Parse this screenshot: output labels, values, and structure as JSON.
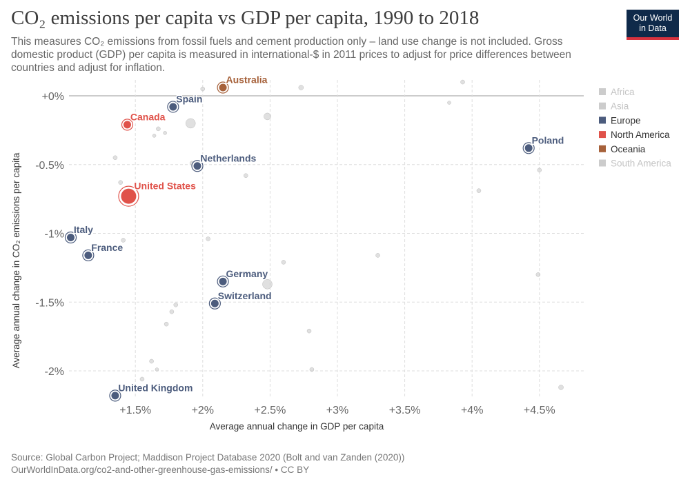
{
  "title": "CO₂ emissions per capita vs GDP per capita, 1990 to 2018",
  "subtitle": "This measures CO₂ emissions from fossil fuels and cement production only – land use change is not included. Gross domestic product (GDP) per capita is measured in international-$ in 2011 prices to adjust for price differences between countries and adjust for inflation.",
  "logo": {
    "line1": "Our World",
    "line2": "in Data"
  },
  "footer": {
    "source": "Source: Global Carbon Project; Maddison Project Database 2020 (Bolt and van Zanden (2020))",
    "url": "OurWorldInData.org/co2-and-other-greenhouse-gas-emissions/ • CC BY"
  },
  "colors": {
    "Europe": "#4c5c7d",
    "North America": "#e0524a",
    "Oceania": "#a6613a",
    "faded": "#cccccc",
    "zero_line": "#999999",
    "grid": "#dddddd"
  },
  "chart_data": {
    "type": "scatter",
    "xlabel": "Average annual change in GDP per capita",
    "ylabel": "Average annual change in CO₂ emissions per capita",
    "xlim": [
      1.0,
      4.8
    ],
    "ylim": [
      -2.2,
      0.12
    ],
    "x_ticks": [
      {
        "value": 1.5,
        "label": "+1.5%"
      },
      {
        "value": 2.0,
        "label": "+2%"
      },
      {
        "value": 2.5,
        "label": "+2.5%"
      },
      {
        "value": 3.0,
        "label": "+3%"
      },
      {
        "value": 3.5,
        "label": "+3.5%"
      },
      {
        "value": 4.0,
        "label": "+4%"
      },
      {
        "value": 4.5,
        "label": "+4.5%"
      }
    ],
    "y_ticks": [
      {
        "value": 0,
        "label": "+0%"
      },
      {
        "value": -0.5,
        "label": "-0.5%"
      },
      {
        "value": -1,
        "label": "-1%"
      },
      {
        "value": -1.5,
        "label": "-1.5%"
      },
      {
        "value": -2,
        "label": "-2%"
      }
    ],
    "legend": {
      "position": "right",
      "items": [
        {
          "label": "Africa",
          "active": false
        },
        {
          "label": "Asia",
          "active": false
        },
        {
          "label": "Europe",
          "active": true
        },
        {
          "label": "North America",
          "active": true
        },
        {
          "label": "Oceania",
          "active": true
        },
        {
          "label": "South America",
          "active": false
        }
      ]
    },
    "highlighted_points": [
      {
        "label": "Australia",
        "region": "Oceania",
        "x": 2.15,
        "y": 0.06
      },
      {
        "label": "Spain",
        "region": "Europe",
        "x": 1.78,
        "y": -0.08
      },
      {
        "label": "Canada",
        "region": "North America",
        "x": 1.44,
        "y": -0.21
      },
      {
        "label": "Netherlands",
        "region": "Europe",
        "x": 1.96,
        "y": -0.51
      },
      {
        "label": "United States",
        "region": "North America",
        "x": 1.45,
        "y": -0.73,
        "size": "large"
      },
      {
        "label": "Italy",
        "region": "Europe",
        "x": 1.02,
        "y": -1.03
      },
      {
        "label": "France",
        "region": "Europe",
        "x": 1.15,
        "y": -1.16
      },
      {
        "label": "Germany",
        "region": "Europe",
        "x": 2.15,
        "y": -1.35
      },
      {
        "label": "Switzerland",
        "region": "Europe",
        "x": 2.09,
        "y": -1.51
      },
      {
        "label": "United Kingdom",
        "region": "Europe",
        "x": 1.35,
        "y": -2.18
      },
      {
        "label": "Poland",
        "region": "Europe",
        "x": 4.42,
        "y": -0.38
      }
    ],
    "faded_points": [
      {
        "x": 1.91,
        "y": -0.2,
        "r": 7
      },
      {
        "x": 2.48,
        "y": -0.15,
        "r": 5
      },
      {
        "x": 2.48,
        "y": -1.37,
        "r": 7
      },
      {
        "x": 2.0,
        "y": 0.05,
        "r": 3
      },
      {
        "x": 2.73,
        "y": 0.06,
        "r": 3.5
      },
      {
        "x": 3.93,
        "y": 0.1,
        "r": 3
      },
      {
        "x": 3.83,
        "y": -0.05,
        "r": 2.5
      },
      {
        "x": 1.67,
        "y": -0.24,
        "r": 3
      },
      {
        "x": 1.64,
        "y": -0.29,
        "r": 2.5
      },
      {
        "x": 1.72,
        "y": -0.27,
        "r": 2.5
      },
      {
        "x": 1.35,
        "y": -0.45,
        "r": 3
      },
      {
        "x": 1.92,
        "y": -0.49,
        "r": 3
      },
      {
        "x": 2.32,
        "y": -0.58,
        "r": 3
      },
      {
        "x": 1.39,
        "y": -0.63,
        "r": 3
      },
      {
        "x": 4.05,
        "y": -0.69,
        "r": 3
      },
      {
        "x": 4.5,
        "y": -0.54,
        "r": 3
      },
      {
        "x": 1.41,
        "y": -1.05,
        "r": 3
      },
      {
        "x": 2.04,
        "y": -1.04,
        "r": 3
      },
      {
        "x": 1.35,
        "y": -1.12,
        "r": 3
      },
      {
        "x": 3.3,
        "y": -1.16,
        "r": 3
      },
      {
        "x": 2.6,
        "y": -1.21,
        "r": 3
      },
      {
        "x": 4.49,
        "y": -1.3,
        "r": 3
      },
      {
        "x": 1.8,
        "y": -1.52,
        "r": 3
      },
      {
        "x": 1.77,
        "y": -1.57,
        "r": 3
      },
      {
        "x": 1.73,
        "y": -1.66,
        "r": 3
      },
      {
        "x": 2.79,
        "y": -1.71,
        "r": 3
      },
      {
        "x": 1.62,
        "y": -1.93,
        "r": 3
      },
      {
        "x": 2.81,
        "y": -1.99,
        "r": 3
      },
      {
        "x": 1.66,
        "y": -1.99,
        "r": 2.5
      },
      {
        "x": 1.55,
        "y": -2.06,
        "r": 3
      },
      {
        "x": 4.66,
        "y": -2.12,
        "r": 3.5
      }
    ]
  }
}
